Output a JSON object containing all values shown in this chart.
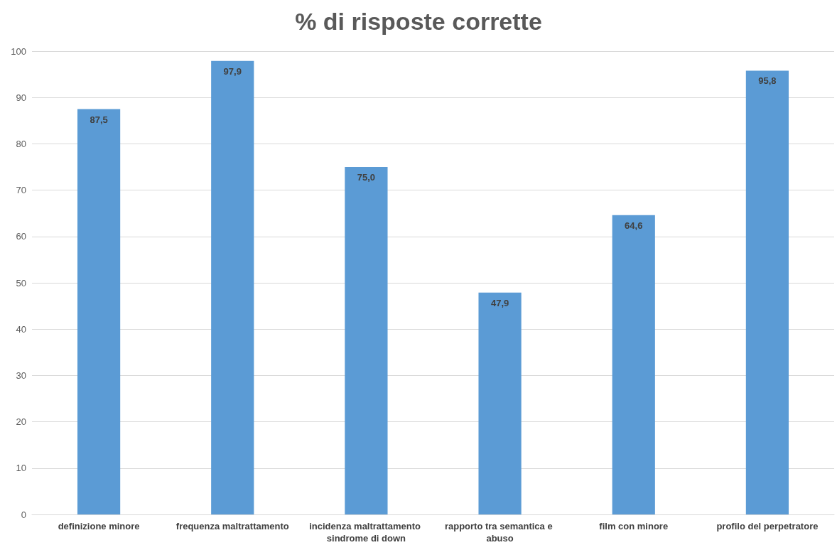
{
  "chart_data": {
    "type": "bar",
    "title": "% di risposte corrette",
    "categories": [
      "definizione minore",
      "frequenza maltrattamento",
      "incidenza maltrattamento sindrome di down",
      "rapporto tra semantica e abuso",
      "film con minore",
      "profilo del perpetratore"
    ],
    "values": [
      87.5,
      97.9,
      75.0,
      47.9,
      64.6,
      95.8
    ],
    "value_labels": [
      "87,5",
      "97,9",
      "75,0",
      "47,9",
      "64,6",
      "95,8"
    ],
    "color": "#5b9bd5",
    "ylim": [
      0,
      100
    ],
    "yticks": [
      0,
      10,
      20,
      30,
      40,
      50,
      60,
      70,
      80,
      90,
      100
    ],
    "grid": "y"
  }
}
